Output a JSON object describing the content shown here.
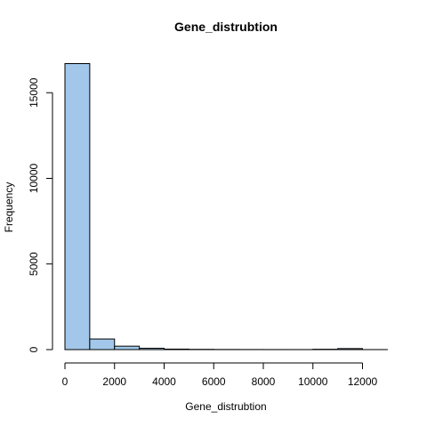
{
  "chart_data": {
    "type": "bar",
    "title": "Gene_distrubtion",
    "xlabel": "Gene_distrubtion",
    "ylabel": "Frequency",
    "bar_color": "#a2c7ea",
    "bar_border": "#000000",
    "bins": [
      {
        "start": 0,
        "end": 1000,
        "count": 16700
      },
      {
        "start": 1000,
        "end": 2000,
        "count": 620
      },
      {
        "start": 2000,
        "end": 3000,
        "count": 200
      },
      {
        "start": 3000,
        "end": 4000,
        "count": 80
      },
      {
        "start": 4000,
        "end": 5000,
        "count": 30
      },
      {
        "start": 5000,
        "end": 6000,
        "count": 15
      },
      {
        "start": 6000,
        "end": 7000,
        "count": 8
      },
      {
        "start": 7000,
        "end": 8000,
        "count": 5
      },
      {
        "start": 8000,
        "end": 9000,
        "count": 4
      },
      {
        "start": 9000,
        "end": 10000,
        "count": 3
      },
      {
        "start": 10000,
        "end": 11000,
        "count": 20
      },
      {
        "start": 11000,
        "end": 12000,
        "count": 60
      },
      {
        "start": 12000,
        "end": 13000,
        "count": 2
      }
    ],
    "xlim": [
      0,
      13000
    ],
    "ylim": [
      0,
      16700
    ],
    "xticks": [
      0,
      2000,
      4000,
      6000,
      8000,
      10000,
      12000
    ],
    "xtick_labels": [
      "0",
      "2000",
      "4000",
      "6000",
      "8000",
      "10000",
      "12000"
    ],
    "yticks": [
      0,
      5000,
      10000,
      15000
    ],
    "ytick_labels": [
      "0",
      "5000",
      "10000",
      "15000"
    ],
    "grid": false,
    "legend": "none"
  }
}
